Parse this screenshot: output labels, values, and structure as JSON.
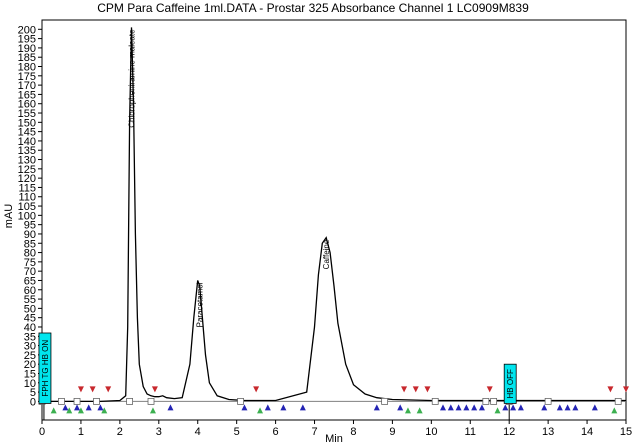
{
  "chart_data": {
    "type": "line",
    "title": "CPM Para Caffeine 1ml.DATA - Prostar 325 Absorbance Channel 1 LC0909M839",
    "xlabel": "Min",
    "ylabel": "mAU",
    "xlim": [
      0,
      15
    ],
    "ylim": [
      -10,
      205
    ],
    "x_ticks": [
      0,
      1,
      2,
      3,
      4,
      5,
      6,
      7,
      8,
      9,
      10,
      11,
      12,
      13,
      14,
      15
    ],
    "y_ticks": [
      0,
      5,
      10,
      15,
      20,
      25,
      30,
      35,
      40,
      45,
      50,
      55,
      60,
      65,
      70,
      75,
      80,
      85,
      90,
      95,
      100,
      105,
      110,
      115,
      120,
      125,
      130,
      135,
      140,
      145,
      150,
      155,
      160,
      165,
      170,
      175,
      180,
      185,
      190,
      195,
      200
    ],
    "line_color": "#000000",
    "baseline_color": "#808080",
    "x": [
      0,
      0.5,
      1.0,
      1.5,
      2.0,
      2.15,
      2.2,
      2.25,
      2.3,
      2.35,
      2.4,
      2.45,
      2.5,
      2.6,
      2.7,
      2.8,
      2.9,
      3.0,
      3.1,
      3.2,
      3.4,
      3.6,
      3.8,
      3.9,
      4.0,
      4.05,
      4.1,
      4.2,
      4.3,
      4.5,
      4.8,
      5.2,
      6.0,
      6.8,
      7.0,
      7.1,
      7.2,
      7.3,
      7.4,
      7.5,
      7.6,
      7.8,
      8.0,
      8.3,
      8.6,
      9.0,
      10.0,
      11.0,
      12.0,
      13.0,
      14.0,
      15.0
    ],
    "y": [
      0,
      0,
      0,
      0,
      0.5,
      3,
      40,
      150,
      201,
      160,
      90,
      45,
      20,
      8,
      4,
      3,
      2.5,
      2.5,
      3,
      2,
      1.5,
      2,
      20,
      45,
      65,
      62,
      50,
      25,
      10,
      3,
      1,
      0.5,
      0.5,
      5,
      40,
      68,
      85,
      88,
      80,
      62,
      42,
      20,
      9,
      4,
      2,
      1,
      0.5,
      0.5,
      0.5,
      0.5,
      0.5,
      0.5
    ],
    "peaks": [
      {
        "name": "Chloropheniramine maleate",
        "x": 2.3,
        "y": 201
      },
      {
        "name": "Paracetamol",
        "x": 4.05,
        "y": 65
      },
      {
        "name": "Caffeine",
        "x": 7.3,
        "y": 88
      }
    ],
    "events": [
      {
        "label": "FPH TG HB ON",
        "x": 0.05
      },
      {
        "label": "HB OFF",
        "x": 12.0
      }
    ],
    "event_box_color": "#00e5ee",
    "markers": {
      "red_down": [
        0.05,
        1.0,
        1.3,
        1.7,
        2.9,
        5.5,
        9.3,
        9.6,
        9.9,
        11.5,
        14.6,
        15.0
      ],
      "green_up": [
        0.3,
        0.7,
        1.0,
        1.6,
        2.85,
        5.6,
        9.4,
        9.7,
        11.7,
        14.7
      ],
      "blue_up": [
        0.6,
        0.9,
        1.2,
        1.5,
        3.3,
        5.2,
        5.8,
        6.2,
        6.7,
        8.6,
        9.2,
        10.3,
        10.5,
        10.7,
        10.9,
        11.1,
        11.3,
        11.9,
        12.1,
        12.3,
        12.9,
        13.3,
        13.5,
        13.7,
        14.2
      ],
      "square": [
        0.0,
        0.5,
        0.9,
        1.4,
        2.25,
        2.8,
        5.1,
        8.8,
        10.1,
        11.4,
        11.6,
        12.0,
        13.0,
        14.8
      ],
      "red_color": "#c8282d",
      "green_color": "#3cb050",
      "blue_color": "#2424b4"
    }
  }
}
